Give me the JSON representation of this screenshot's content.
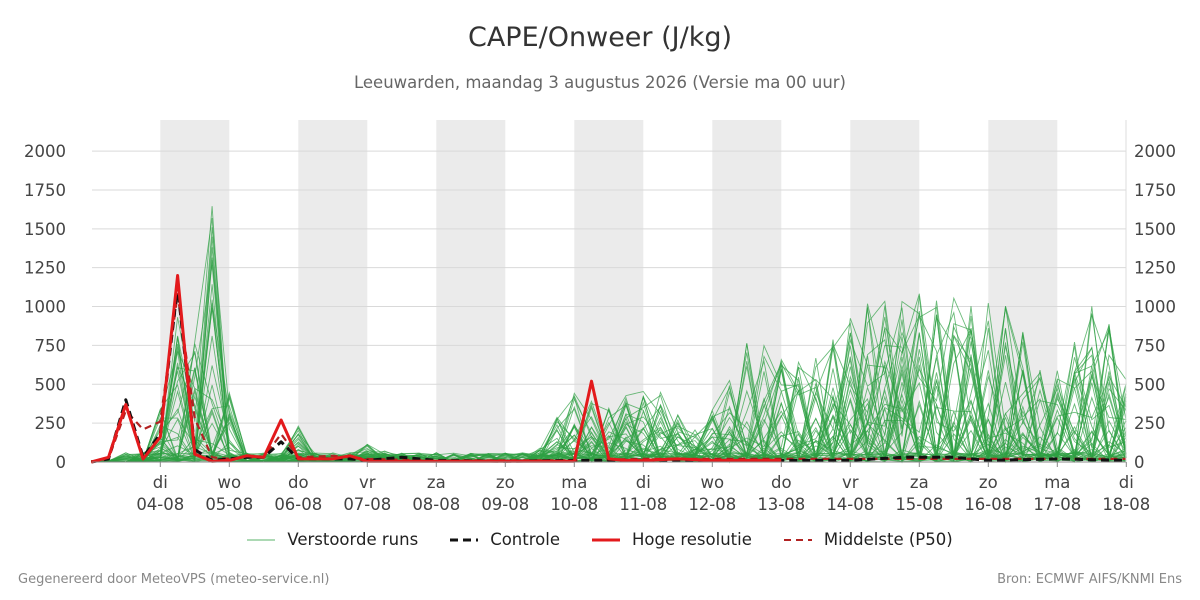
{
  "title": "CAPE/Onweer (J/kg)",
  "subtitle": "Leeuwarden, maandag  3 augustus 2026 (Versie ma 00 uur)",
  "footer": {
    "left": "Gegenereerd door MeteoVPS (meteo-service.nl)",
    "right": "Bron: ECMWF AIFS/KNMI Ens"
  },
  "colors": {
    "ensemble": "#2ea043",
    "control": "#111111",
    "high_res": "#e31a1c",
    "median": "#b22222",
    "weekend_band": "#ebebeb",
    "grid": "#d9d9d9"
  },
  "legend": [
    {
      "label": "Verstoorde runs",
      "style": "thin-green"
    },
    {
      "label": "Controle",
      "style": "dashed-black"
    },
    {
      "label": "Hoge resolutie",
      "style": "solid-red"
    },
    {
      "label": "Middelste (P50)",
      "style": "dashed-darkred"
    }
  ],
  "chart_data": {
    "type": "line",
    "title": "CAPE/Onweer (J/kg)",
    "ylim": [
      0,
      2200
    ],
    "y_ticks": [
      0,
      250,
      500,
      750,
      1000,
      1250,
      1500,
      1750,
      2000
    ],
    "x_range_days": [
      "2026-08-03",
      "2026-08-18"
    ],
    "x_ticks": [
      {
        "day": "di",
        "date": "04-08"
      },
      {
        "day": "wo",
        "date": "05-08"
      },
      {
        "day": "do",
        "date": "06-08"
      },
      {
        "day": "vr",
        "date": "07-08"
      },
      {
        "day": "za",
        "date": "08-08"
      },
      {
        "day": "zo",
        "date": "09-08"
      },
      {
        "day": "ma",
        "date": "10-08"
      },
      {
        "day": "di",
        "date": "11-08"
      },
      {
        "day": "wo",
        "date": "12-08"
      },
      {
        "day": "do",
        "date": "13-08"
      },
      {
        "day": "vr",
        "date": "14-08"
      },
      {
        "day": "za",
        "date": "15-08"
      },
      {
        "day": "zo",
        "date": "16-08"
      },
      {
        "day": "ma",
        "date": "17-08"
      },
      {
        "day": "di",
        "date": "18-08"
      }
    ],
    "shaded_days": [
      "04-08",
      "06-08",
      "08-08",
      "10-08",
      "12-08",
      "14-08",
      "16-08"
    ],
    "grid": true,
    "legend_position": "bottom",
    "series": [
      {
        "name": "Controle",
        "style": "dashed-black",
        "x": [
          "2026-08-03 00:00",
          "2026-08-03 06:00",
          "2026-08-03 12:00",
          "2026-08-03 18:00",
          "2026-08-04 00:00",
          "2026-08-04 06:00",
          "2026-08-04 12:00",
          "2026-08-04 18:00",
          "2026-08-05 00:00",
          "2026-08-05 06:00",
          "2026-08-05 12:00",
          "2026-08-05 18:00",
          "2026-08-06 00:00",
          "2026-08-06 06:00",
          "2026-08-06 12:00",
          "2026-08-06 18:00",
          "2026-08-07 00:00",
          "2026-08-07 12:00",
          "2026-08-08 00:00",
          "2026-08-09 00:00",
          "2026-08-10 00:00",
          "2026-08-11 00:00",
          "2026-08-12 00:00",
          "2026-08-13 00:00",
          "2026-08-14 00:00",
          "2026-08-14 18:00",
          "2026-08-15 00:00",
          "2026-08-15 12:00",
          "2026-08-16 00:00",
          "2026-08-17 00:00",
          "2026-08-18 00:00"
        ],
        "values": [
          0,
          20,
          400,
          30,
          180,
          1130,
          80,
          10,
          20,
          30,
          30,
          130,
          20,
          20,
          20,
          20,
          10,
          30,
          10,
          5,
          10,
          10,
          10,
          10,
          10,
          30,
          30,
          30,
          10,
          20,
          10
        ]
      },
      {
        "name": "Hoge resolutie",
        "style": "solid-red",
        "x": [
          "2026-08-03 00:00",
          "2026-08-03 06:00",
          "2026-08-03 12:00",
          "2026-08-03 18:00",
          "2026-08-04 00:00",
          "2026-08-04 06:00",
          "2026-08-04 12:00",
          "2026-08-04 18:00",
          "2026-08-05 00:00",
          "2026-08-05 06:00",
          "2026-08-05 12:00",
          "2026-08-05 18:00",
          "2026-08-06 00:00",
          "2026-08-06 06:00",
          "2026-08-06 12:00",
          "2026-08-06 18:00",
          "2026-08-07 00:00",
          "2026-08-07 06:00",
          "2026-08-07 12:00",
          "2026-08-07 18:00",
          "2026-08-08 00:00",
          "2026-08-09 00:00",
          "2026-08-10 00:00",
          "2026-08-10 06:00",
          "2026-08-10 12:00",
          "2026-08-10 18:00",
          "2026-08-11 00:00",
          "2026-08-11 12:00",
          "2026-08-12 00:00",
          "2026-08-13 00:00"
        ],
        "values": [
          0,
          30,
          370,
          20,
          160,
          1200,
          50,
          5,
          10,
          40,
          30,
          270,
          20,
          20,
          20,
          40,
          5,
          5,
          5,
          5,
          5,
          5,
          5,
          520,
          20,
          10,
          10,
          20,
          10,
          10
        ]
      },
      {
        "name": "Middelste (P50)",
        "style": "dashed-darkred",
        "x": [
          "2026-08-03 00:00",
          "2026-08-03 06:00",
          "2026-08-03 12:00",
          "2026-08-03 18:00",
          "2026-08-04 00:00",
          "2026-08-04 06:00",
          "2026-08-04 12:00",
          "2026-08-04 18:00",
          "2026-08-05 00:00",
          "2026-08-05 06:00",
          "2026-08-05 12:00",
          "2026-08-05 18:00",
          "2026-08-06 00:00",
          "2026-08-06 12:00",
          "2026-08-07 00:00",
          "2026-08-08 00:00",
          "2026-08-09 00:00",
          "2026-08-10 00:00",
          "2026-08-11 00:00",
          "2026-08-12 00:00",
          "2026-08-13 00:00",
          "2026-08-14 00:00",
          "2026-08-15 00:00",
          "2026-08-16 00:00",
          "2026-08-17 00:00",
          "2026-08-18 00:00"
        ],
        "values": [
          0,
          20,
          330,
          210,
          260,
          1080,
          280,
          30,
          20,
          30,
          30,
          180,
          30,
          40,
          20,
          10,
          10,
          10,
          20,
          20,
          20,
          20,
          20,
          20,
          20,
          20
        ]
      }
    ]
  }
}
